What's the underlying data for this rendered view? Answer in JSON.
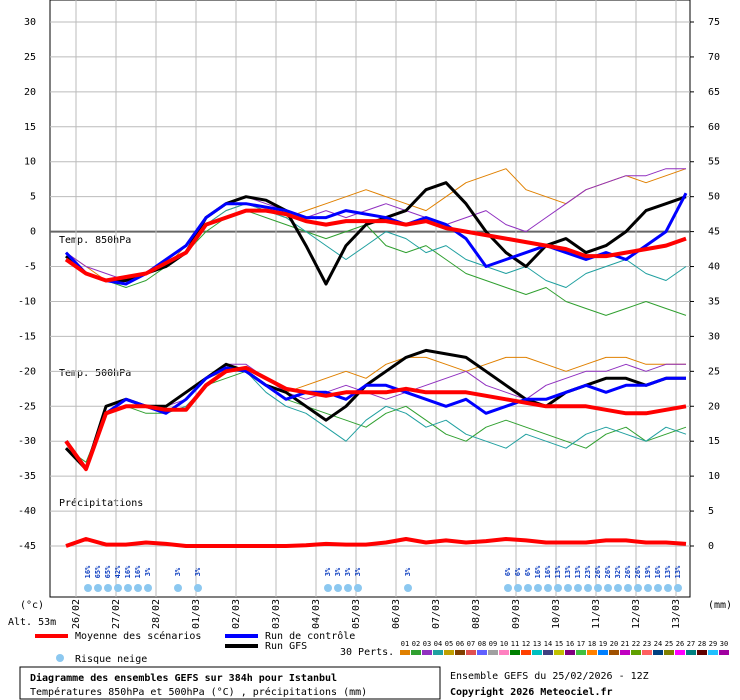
{
  "chart_data": {
    "type": "line",
    "x": [
      -0.25,
      0.25,
      0.75,
      1.25,
      1.75,
      2.25,
      2.75,
      3.25,
      3.75,
      4.25,
      4.75,
      5.25,
      5.75,
      6.25,
      6.75,
      7.25,
      7.75,
      8.25,
      8.75,
      9.25,
      9.75,
      10.25,
      10.75,
      11.25,
      11.75,
      12.25,
      12.75,
      13.25,
      13.75,
      14.25,
      14.75,
      15.25
    ],
    "xlim": [
      -0.65,
      15.35
    ],
    "xticks": [
      {
        "value": 0,
        "label": "26/02"
      },
      {
        "value": 1,
        "label": "27/02"
      },
      {
        "value": 2,
        "label": "28/02"
      },
      {
        "value": 3,
        "label": "01/03"
      },
      {
        "value": 4,
        "label": "02/03"
      },
      {
        "value": 5,
        "label": "03/03"
      },
      {
        "value": 6,
        "label": "04/03"
      },
      {
        "value": 7,
        "label": "05/03"
      },
      {
        "value": 8,
        "label": "06/03"
      },
      {
        "value": 9,
        "label": "07/03"
      },
      {
        "value": 10,
        "label": "08/03"
      },
      {
        "value": 11,
        "label": "09/03"
      },
      {
        "value": 12,
        "label": "10/03"
      },
      {
        "value": 13,
        "label": "11/03"
      },
      {
        "value": 14,
        "label": "12/03"
      },
      {
        "value": 15,
        "label": "13/03"
      }
    ],
    "ylim": [
      -45,
      30
    ],
    "yticks": [
      -45,
      -40,
      -35,
      -30,
      -25,
      -20,
      -15,
      -10,
      -5,
      0,
      5,
      10,
      15,
      20,
      25,
      30
    ],
    "y2lim": [
      0,
      75
    ],
    "y2ticks": [
      0,
      5,
      10,
      15,
      20,
      25,
      30,
      35,
      40,
      45,
      50,
      55,
      60,
      65,
      70,
      75
    ],
    "grid": true,
    "y_unit": "(°c)",
    "y2_unit": "(mm)",
    "altitude": "Alt. 53m",
    "level_labels": [
      "Temp. 850hPa",
      "Temp. 500hPa",
      "Précipitations"
    ],
    "series": [
      {
        "color": "#e08000",
        "width": 1,
        "values": [
          -3,
          -5,
          -7,
          -7,
          -6,
          -5,
          -2,
          1,
          3,
          4,
          3,
          2,
          3,
          4,
          5,
          6,
          5,
          4,
          3,
          5,
          7,
          8,
          9,
          6,
          5,
          4,
          6,
          7,
          8,
          7,
          8,
          9
        ]
      },
      {
        "color": "#30a030",
        "width": 1,
        "values": [
          -4,
          -6,
          -7,
          -8,
          -7,
          -5,
          -3,
          0,
          2,
          3,
          2,
          1,
          0,
          -1,
          0,
          1,
          -2,
          -3,
          -2,
          -4,
          -6,
          -7,
          -8,
          -9,
          -8,
          -10,
          -11,
          -12,
          -11,
          -10,
          -11,
          -12
        ]
      },
      {
        "color": "#9030c0",
        "width": 1,
        "values": [
          -3,
          -5,
          -6,
          -7,
          -6,
          -4,
          -2,
          2,
          4,
          5,
          4,
          3,
          2,
          3,
          2,
          3,
          4,
          3,
          2,
          1,
          2,
          3,
          1,
          0,
          2,
          4,
          6,
          7,
          8,
          8,
          9,
          9
        ]
      },
      {
        "color": "#20a0a0",
        "width": 1,
        "values": [
          -4,
          -6,
          -7,
          -7,
          -6,
          -5,
          -3,
          1,
          3,
          4,
          3,
          2,
          0,
          -2,
          -4,
          -2,
          0,
          -1,
          -3,
          -2,
          -4,
          -5,
          -6,
          -5,
          -7,
          -8,
          -6,
          -5,
          -4,
          -6,
          -7,
          -5
        ]
      },
      {
        "color": "#e08000",
        "width": 1,
        "values": [
          -30,
          -34,
          -25,
          -24,
          -25,
          -26,
          -24,
          -21,
          -20,
          -20,
          -22,
          -23,
          -22,
          -21,
          -20,
          -21,
          -19,
          -18,
          -18,
          -19,
          -20,
          -19,
          -18,
          -18,
          -19,
          -20,
          -19,
          -18,
          -18,
          -19,
          -19,
          -19
        ]
      },
      {
        "color": "#30a030",
        "width": 1,
        "values": [
          -31,
          -33,
          -26,
          -25,
          -26,
          -26,
          -25,
          -22,
          -21,
          -20,
          -22,
          -24,
          -25,
          -26,
          -27,
          -28,
          -26,
          -25,
          -27,
          -29,
          -30,
          -28,
          -27,
          -28,
          -29,
          -30,
          -31,
          -29,
          -28,
          -30,
          -29,
          -28
        ]
      },
      {
        "color": "#9030c0",
        "width": 1,
        "values": [
          -30,
          -34,
          -26,
          -24,
          -25,
          -25,
          -24,
          -21,
          -19,
          -19,
          -21,
          -23,
          -24,
          -23,
          -22,
          -23,
          -24,
          -23,
          -22,
          -21,
          -20,
          -22,
          -23,
          -24,
          -22,
          -21,
          -20,
          -20,
          -19,
          -20,
          -19,
          -19
        ]
      },
      {
        "color": "#20a0a0",
        "width": 1,
        "values": [
          -31,
          -34,
          -26,
          -25,
          -25,
          -26,
          -25,
          -22,
          -20,
          -20,
          -23,
          -25,
          -26,
          -28,
          -30,
          -27,
          -25,
          -26,
          -28,
          -27,
          -29,
          -30,
          -31,
          -29,
          -30,
          -31,
          -29,
          -28,
          -29,
          -30,
          -28,
          -29
        ]
      },
      {
        "name": "Run GFS",
        "color": "#000000",
        "width": 3,
        "values": [
          -3.5,
          -6,
          -7,
          -7,
          -6,
          -5,
          -3,
          2,
          4,
          5,
          4.5,
          3,
          -2,
          -7.5,
          -2,
          1,
          2,
          3,
          6,
          7,
          4,
          0,
          -3,
          -5,
          -2,
          -1,
          -3,
          -2,
          0,
          3,
          4,
          5
        ]
      },
      {
        "color": "#000000",
        "width": 3,
        "values": [
          -31,
          -34,
          -25,
          -24,
          -25,
          -25,
          -23,
          -21,
          -19,
          -20,
          -22,
          -23,
          -25,
          -27,
          -25,
          -22,
          -20,
          -18,
          -17,
          -17.5,
          -18,
          -20,
          -22,
          -24,
          -25,
          -23,
          -22,
          -21,
          -21,
          -22,
          -21,
          -21
        ]
      },
      {
        "name": "Run de contrôle",
        "color": "#0000ff",
        "width": 3,
        "values": [
          -3,
          -6,
          -7,
          -7.5,
          -6,
          -4,
          -2,
          2,
          4,
          4,
          3.5,
          3,
          2,
          2,
          3,
          2.5,
          2,
          1,
          2,
          1,
          -1,
          -5,
          -4,
          -3,
          -2,
          -3,
          -4,
          -3,
          -4,
          -2,
          0,
          5.5
        ]
      },
      {
        "color": "#0000ff",
        "width": 3,
        "values": [
          -30,
          -34,
          -26,
          -24,
          -25,
          -26,
          -24,
          -21,
          -19.5,
          -20,
          -22,
          -24,
          -23,
          -23,
          -24,
          -22,
          -22,
          -23,
          -24,
          -25,
          -24,
          -26,
          -25,
          -24,
          -24,
          -23,
          -22,
          -23,
          -22,
          -22,
          -21,
          -21
        ]
      },
      {
        "name": "Moyenne des scénarios",
        "color": "#ff0000",
        "width": 4,
        "values": [
          -4,
          -6,
          -7,
          -6.5,
          -6,
          -4.5,
          -3,
          1,
          2,
          3,
          3,
          2.5,
          1.5,
          1,
          1.5,
          1.5,
          1.5,
          1,
          1.5,
          0.5,
          0,
          -0.5,
          -1,
          -1.5,
          -2,
          -2.5,
          -3.5,
          -3.5,
          -3,
          -2.5,
          -2,
          -1
        ]
      },
      {
        "color": "#ff0000",
        "width": 4,
        "values": [
          -30,
          -34,
          -26,
          -25,
          -25,
          -25.5,
          -25.5,
          -22,
          -20,
          -19.5,
          -21,
          -22.5,
          -23,
          -23.5,
          -23,
          -23,
          -23,
          -22.5,
          -23,
          -23,
          -23,
          -23.5,
          -24,
          -24.5,
          -25,
          -25,
          -25,
          -25.5,
          -26,
          -26,
          -25.5,
          -25
        ]
      },
      {
        "color": "#ff0000",
        "width": 4,
        "axis": "y2",
        "values": [
          0,
          1,
          0.2,
          0.2,
          0.5,
          0.3,
          0,
          0,
          0,
          0,
          0,
          0,
          0.1,
          0.3,
          0.2,
          0.2,
          0.5,
          1,
          0.5,
          0.8,
          0.5,
          0.7,
          1,
          0.8,
          0.5,
          0.5,
          0.5,
          0.8,
          0.8,
          0.5,
          0.5,
          0.3
        ]
      }
    ],
    "snow_risk": {
      "label": "Risque neige",
      "x": [
        0.3,
        0.55,
        0.8,
        1.05,
        1.3,
        1.55,
        1.8,
        2.55,
        3.05,
        6.3,
        6.55,
        6.8,
        7.05,
        8.3,
        10.8,
        11.05,
        11.3,
        11.55,
        11.8,
        12.05,
        12.3,
        12.55,
        12.8,
        13.05,
        13.3,
        13.55,
        13.8,
        14.05,
        14.3,
        14.55,
        14.8,
        15.05
      ],
      "values": [
        16,
        65,
        65,
        42,
        16,
        16,
        3,
        3,
        3,
        3,
        3,
        3,
        3,
        3,
        6,
        6,
        6,
        16,
        16,
        13,
        13,
        13,
        23,
        26,
        26,
        32,
        26,
        26,
        19,
        16,
        13,
        13
      ],
      "value_labels": [
        "16%",
        "65%",
        "65%",
        "42%",
        "16%",
        "16%",
        "3%",
        "3%",
        "3%",
        "3%",
        "3%",
        "3%",
        "3%",
        "3%",
        "6%",
        "6%",
        "6%",
        "16%",
        "16%",
        "13%",
        "13%",
        "13%",
        "23%",
        "26%",
        "26%",
        "32%",
        "26%",
        "26%",
        "19%",
        "16%",
        "13%",
        "13%"
      ]
    },
    "perturbations": {
      "label": "30 Perts.",
      "codes": [
        "01",
        "02",
        "03",
        "04",
        "05",
        "06",
        "07",
        "08",
        "09",
        "10",
        "11",
        "12",
        "13",
        "14",
        "15",
        "16",
        "17",
        "18",
        "19",
        "20",
        "21",
        "22",
        "23",
        "24",
        "25",
        "26",
        "27",
        "28",
        "29",
        "30"
      ],
      "colors": [
        "#e08000",
        "#30a030",
        "#9030c0",
        "#20a0a0",
        "#c0a000",
        "#804000",
        "#e05050",
        "#6060ff",
        "#a0a0a0",
        "#ff80c0",
        "#008000",
        "#ff4000",
        "#00c0c0",
        "#404080",
        "#c0c000",
        "#800080",
        "#40c040",
        "#ff8000",
        "#0080ff",
        "#a05000",
        "#c000c0",
        "#60a000",
        "#ff6060",
        "#004080",
        "#808000",
        "#ff00ff",
        "#008080",
        "#600000",
        "#20c0ff",
        "#a000a0"
      ]
    },
    "title": "Diagramme des ensembles GEFS sur 384h pour Istanbul",
    "subtitle": "Températures 850hPa et 500hPa (°C) , précipitations (mm)",
    "run_info": "Ensemble GEFS du 25/02/2026 - 12Z",
    "copyright": "Copyright 2026 Meteociel.fr"
  }
}
